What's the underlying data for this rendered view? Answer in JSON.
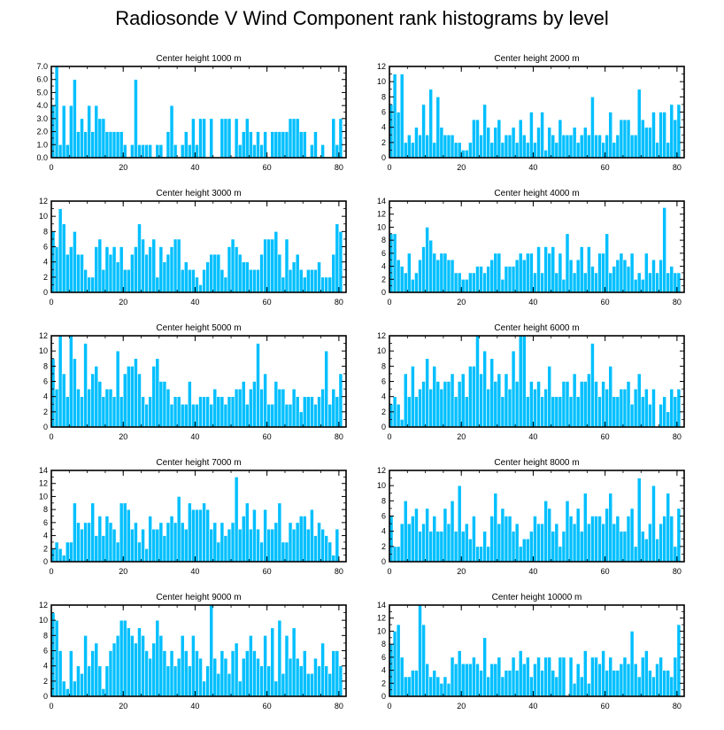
{
  "title": "Radiosonde V Wind Component rank histograms by level",
  "bar_color": "#00bfff",
  "bar_edge_color": "#ffffff",
  "axis_color": "#000000",
  "chart_data": [
    {
      "type": "bar",
      "title": "Center height 1000 m",
      "xlim": [
        0,
        82
      ],
      "ylim": [
        0,
        7
      ],
      "yticks": [
        "0.0",
        "1.0",
        "2.0",
        "3.0",
        "4.0",
        "5.0",
        "6.0",
        "7.0"
      ],
      "xticks": [
        "0",
        "20",
        "40",
        "60",
        "80"
      ],
      "values": [
        4,
        7,
        1,
        4,
        1,
        4,
        6,
        2,
        3,
        2,
        4,
        2,
        4,
        3,
        3,
        2,
        2,
        2,
        2,
        2,
        1,
        0,
        1,
        6,
        1,
        1,
        1,
        1,
        0,
        1,
        1,
        0,
        2,
        4,
        1,
        0,
        1,
        2,
        1,
        3,
        1,
        3,
        3,
        0,
        3,
        0,
        0,
        3,
        3,
        3,
        0,
        3,
        1,
        2,
        3,
        2,
        1,
        2,
        1,
        2,
        0,
        2,
        2,
        2,
        2,
        2,
        3,
        3,
        3,
        2,
        2,
        0,
        1,
        2,
        0,
        1,
        0,
        0,
        3,
        1,
        3
      ]
    },
    {
      "type": "bar",
      "title": "Center height 2000 m",
      "xlim": [
        0,
        82
      ],
      "ylim": [
        0,
        12
      ],
      "yticks": [
        "0",
        "2",
        "4",
        "6",
        "8",
        "10",
        "12"
      ],
      "xticks": [
        "0",
        "20",
        "40",
        "60",
        "80"
      ],
      "values": [
        7,
        11,
        6,
        11,
        2,
        3,
        2,
        4,
        3,
        7,
        3,
        9,
        2,
        8,
        4,
        3,
        3,
        3,
        2,
        2,
        1,
        1,
        2,
        5,
        5,
        3,
        7,
        4,
        2,
        4,
        5,
        2,
        3,
        3,
        4,
        2,
        5,
        3,
        2,
        6,
        2,
        4,
        6,
        1,
        4,
        3,
        2,
        5,
        3,
        3,
        3,
        4,
        2,
        3,
        4,
        3,
        8,
        3,
        3,
        2,
        3,
        6,
        2,
        3,
        5,
        5,
        5,
        3,
        3,
        9,
        5,
        4,
        4,
        6,
        2,
        6,
        6,
        2,
        7,
        5,
        7
      ]
    },
    {
      "type": "bar",
      "title": "Center height 3000 m",
      "xlim": [
        0,
        82
      ],
      "ylim": [
        0,
        12
      ],
      "yticks": [
        "0",
        "2",
        "4",
        "6",
        "8",
        "10",
        "12"
      ],
      "xticks": [
        "0",
        "20",
        "40",
        "60",
        "80"
      ],
      "values": [
        8,
        6,
        11,
        9,
        5,
        6,
        8,
        5,
        5,
        3,
        2,
        2,
        6,
        7,
        3,
        6,
        5,
        6,
        4,
        6,
        3,
        3,
        5,
        6,
        9,
        7,
        5,
        6,
        7,
        2,
        6,
        4,
        5,
        6,
        7,
        7,
        3,
        4,
        3,
        3,
        2,
        1,
        3,
        4,
        5,
        5,
        5,
        3,
        2,
        6,
        7,
        6,
        5,
        4,
        4,
        3,
        3,
        3,
        5,
        7,
        7,
        7,
        8,
        5,
        2,
        7,
        3,
        4,
        5,
        3,
        2,
        3,
        3,
        3,
        4,
        2,
        2,
        2,
        5,
        9,
        8
      ]
    },
    {
      "type": "bar",
      "title": "Center height 4000 m",
      "xlim": [
        0,
        82
      ],
      "ylim": [
        0,
        14
      ],
      "yticks": [
        "0",
        "2",
        "4",
        "6",
        "8",
        "10",
        "12",
        "14"
      ],
      "xticks": [
        "0",
        "20",
        "40",
        "60",
        "80"
      ],
      "values": [
        9,
        9,
        5,
        4,
        3,
        6,
        2,
        3,
        5,
        7,
        10,
        8,
        6,
        5,
        6,
        6,
        5,
        5,
        3,
        3,
        2,
        2,
        3,
        3,
        4,
        4,
        3,
        4,
        5,
        6,
        6,
        2,
        4,
        4,
        4,
        5,
        6,
        5,
        6,
        6,
        3,
        7,
        3,
        7,
        6,
        7,
        3,
        6,
        2,
        9,
        5,
        3,
        5,
        7,
        3,
        7,
        4,
        3,
        6,
        6,
        9,
        3,
        4,
        5,
        6,
        5,
        4,
        6,
        2,
        3,
        2,
        6,
        3,
        5,
        3,
        5,
        13,
        3,
        4,
        3,
        3
      ]
    },
    {
      "type": "bar",
      "title": "Center height 5000 m",
      "xlim": [
        0,
        82
      ],
      "ylim": [
        0,
        12
      ],
      "yticks": [
        "0",
        "2",
        "4",
        "6",
        "8",
        "10",
        "12"
      ],
      "xticks": [
        "0",
        "20",
        "40",
        "60",
        "80"
      ],
      "values": [
        9,
        5,
        12,
        7,
        4,
        12,
        9,
        5,
        4,
        11,
        5,
        7,
        8,
        6,
        4,
        5,
        5,
        4,
        10,
        4,
        7,
        8,
        8,
        9,
        7,
        4,
        3,
        4,
        8,
        9,
        6,
        6,
        5,
        3,
        4,
        4,
        3,
        3,
        6,
        3,
        3,
        4,
        4,
        4,
        3,
        5,
        4,
        4,
        3,
        4,
        4,
        5,
        5,
        6,
        3,
        5,
        6,
        11,
        5,
        7,
        3,
        3,
        6,
        5,
        5,
        3,
        3,
        5,
        4,
        2,
        4,
        4,
        4,
        3,
        4,
        5,
        10,
        3,
        5,
        4,
        7
      ]
    },
    {
      "type": "bar",
      "title": "Center height 6000 m",
      "xlim": [
        0,
        82
      ],
      "ylim": [
        0,
        12
      ],
      "yticks": [
        "0",
        "2",
        "4",
        "6",
        "8",
        "10",
        "12"
      ],
      "xticks": [
        "0",
        "20",
        "40",
        "60",
        "80"
      ],
      "values": [
        3,
        4,
        3,
        1,
        7,
        4,
        8,
        4,
        5,
        6,
        9,
        5,
        8,
        6,
        5,
        6,
        6,
        7,
        4,
        6,
        7,
        4,
        8,
        8,
        12,
        7,
        10,
        5,
        9,
        6,
        7,
        4,
        7,
        5,
        10,
        6,
        12,
        12,
        4,
        6,
        5,
        6,
        4,
        5,
        8,
        4,
        4,
        4,
        6,
        6,
        4,
        7,
        4,
        6,
        6,
        7,
        11,
        6,
        4,
        6,
        5,
        8,
        4,
        4,
        5,
        5,
        6,
        3,
        5,
        7,
        4,
        5,
        3,
        5,
        0,
        3,
        4,
        2,
        5,
        4,
        5
      ]
    },
    {
      "type": "bar",
      "title": "Center height 7000 m",
      "xlim": [
        0,
        82
      ],
      "ylim": [
        0,
        14
      ],
      "yticks": [
        "0",
        "2",
        "4",
        "6",
        "8",
        "10",
        "12",
        "14"
      ],
      "xticks": [
        "0",
        "20",
        "40",
        "60",
        "80"
      ],
      "values": [
        2,
        3,
        2,
        1,
        3,
        3,
        9,
        6,
        5,
        6,
        6,
        9,
        4,
        7,
        4,
        7,
        6,
        5,
        3,
        9,
        9,
        8,
        5,
        6,
        3,
        5,
        2,
        7,
        5,
        5,
        6,
        4,
        6,
        7,
        6,
        10,
        6,
        5,
        9,
        8,
        8,
        8,
        9,
        8,
        5,
        6,
        3,
        6,
        4,
        5,
        6,
        13,
        5,
        7,
        9,
        5,
        8,
        5,
        3,
        8,
        5,
        5,
        6,
        9,
        3,
        3,
        6,
        5,
        6,
        7,
        7,
        5,
        8,
        4,
        6,
        5,
        4,
        3,
        1,
        5,
        0
      ]
    },
    {
      "type": "bar",
      "title": "Center height 8000 m",
      "xlim": [
        0,
        82
      ],
      "ylim": [
        0,
        12
      ],
      "yticks": [
        "0",
        "2",
        "4",
        "6",
        "8",
        "10",
        "12"
      ],
      "xticks": [
        "0",
        "20",
        "40",
        "60",
        "80"
      ],
      "values": [
        6,
        2,
        2,
        5,
        8,
        5,
        6,
        7,
        4,
        5,
        7,
        4,
        6,
        4,
        4,
        7,
        5,
        8,
        4,
        10,
        4,
        5,
        3,
        6,
        2,
        2,
        4,
        2,
        6,
        9,
        5,
        7,
        6,
        6,
        4,
        5,
        2,
        3,
        3,
        4,
        6,
        5,
        5,
        8,
        7,
        4,
        5,
        2,
        4,
        8,
        6,
        5,
        7,
        4,
        9,
        5,
        6,
        6,
        6,
        5,
        7,
        9,
        5,
        6,
        4,
        4,
        6,
        7,
        2,
        11,
        4,
        3,
        5,
        10,
        3,
        5,
        6,
        9,
        6,
        2,
        7
      ]
    },
    {
      "type": "bar",
      "title": "Center height 9000 m",
      "xlim": [
        0,
        82
      ],
      "ylim": [
        0,
        12
      ],
      "yticks": [
        "0",
        "2",
        "4",
        "6",
        "8",
        "10",
        "12"
      ],
      "xticks": [
        "0",
        "20",
        "40",
        "60",
        "80"
      ],
      "values": [
        11,
        10,
        6,
        2,
        1,
        6,
        2,
        4,
        3,
        8,
        4,
        6,
        7,
        4,
        1,
        4,
        6,
        7,
        8,
        10,
        10,
        9,
        8,
        7,
        9,
        8,
        6,
        5,
        7,
        10,
        8,
        6,
        4,
        6,
        4,
        5,
        8,
        6,
        4,
        8,
        6,
        5,
        2,
        4,
        12,
        5,
        3,
        6,
        5,
        3,
        6,
        7,
        2,
        5,
        6,
        8,
        6,
        5,
        4,
        8,
        4,
        9,
        2,
        10,
        3,
        8,
        5,
        9,
        5,
        4,
        6,
        3,
        3,
        5,
        4,
        7,
        4,
        3,
        6,
        6,
        4
      ]
    },
    {
      "type": "bar",
      "title": "Center height 10000 m",
      "xlim": [
        0,
        82
      ],
      "ylim": [
        0,
        14
      ],
      "yticks": [
        "0",
        "2",
        "4",
        "6",
        "8",
        "10",
        "12",
        "14"
      ],
      "xticks": [
        "0",
        "20",
        "40",
        "60",
        "80"
      ],
      "values": [
        8,
        10,
        11,
        6,
        3,
        3,
        4,
        4,
        14,
        11,
        5,
        3,
        4,
        3,
        2,
        3,
        2,
        6,
        5,
        7,
        5,
        5,
        5,
        6,
        5,
        4,
        9,
        3,
        5,
        5,
        6,
        3,
        4,
        4,
        6,
        4,
        7,
        5,
        6,
        3,
        5,
        6,
        4,
        6,
        6,
        4,
        3,
        6,
        6,
        0,
        6,
        2,
        5,
        3,
        7,
        2,
        6,
        6,
        5,
        7,
        4,
        6,
        4,
        4,
        5,
        6,
        5,
        10,
        5,
        3,
        6,
        7,
        4,
        3,
        5,
        6,
        4,
        4,
        3,
        6,
        11
      ]
    }
  ]
}
